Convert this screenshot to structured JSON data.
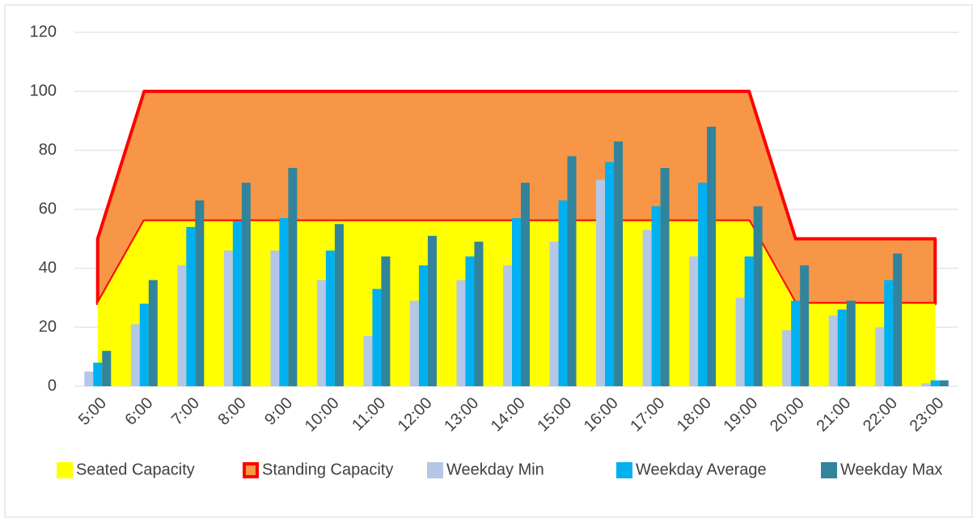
{
  "chart_data": {
    "type": "bar",
    "categories": [
      "5:00",
      "6:00",
      "7:00",
      "8:00",
      "9:00",
      "10:00",
      "11:00",
      "12:00",
      "13:00",
      "14:00",
      "15:00",
      "16:00",
      "17:00",
      "18:00",
      "19:00",
      "20:00",
      "21:00",
      "22:00",
      "23:00"
    ],
    "series": [
      {
        "name": "Seated Capacity",
        "type": "area",
        "color": "#ffff00",
        "values": [
          28,
          56,
          56,
          56,
          56,
          56,
          56,
          56,
          56,
          56,
          56,
          56,
          56,
          56,
          56,
          28,
          28,
          28,
          28
        ]
      },
      {
        "name": "Standing Capacity",
        "type": "area",
        "color": "#f79646",
        "edge_color": "#ff0000",
        "values": [
          50,
          100,
          100,
          100,
          100,
          100,
          100,
          100,
          100,
          100,
          100,
          100,
          100,
          100,
          100,
          50,
          50,
          50,
          50
        ]
      },
      {
        "name": "Weekday Min",
        "type": "bar",
        "color": "#b4c7e7",
        "values": [
          5,
          21,
          41,
          46,
          46,
          36,
          17,
          29,
          36,
          41,
          49,
          70,
          53,
          44,
          30,
          19,
          24,
          20,
          1
        ]
      },
      {
        "name": "Weekday Average",
        "type": "bar",
        "color": "#00b0f0",
        "values": [
          8,
          28,
          54,
          56,
          57,
          46,
          33,
          41,
          44,
          57,
          63,
          76,
          61,
          69,
          44,
          29,
          26,
          36,
          2
        ]
      },
      {
        "name": "Weekday Max",
        "type": "bar",
        "color": "#31849b",
        "values": [
          12,
          36,
          63,
          69,
          74,
          55,
          44,
          51,
          49,
          69,
          78,
          83,
          74,
          88,
          61,
          41,
          29,
          45,
          2
        ]
      }
    ],
    "ylim": [
      0,
      120
    ],
    "yticks": [
      0,
      20,
      40,
      60,
      80,
      100,
      120
    ],
    "grid": true,
    "legend": "bottom"
  }
}
